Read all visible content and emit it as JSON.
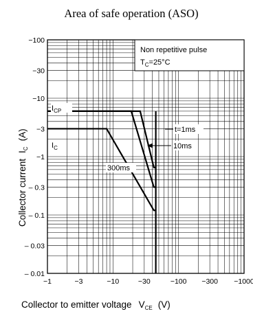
{
  "chart_data": {
    "type": "line",
    "title": "Area of safe operation (ASO)",
    "xlabel": {
      "main": "Collector to emitter voltage",
      "symbol": "V",
      "sub": "CE",
      "unit": "(V)"
    },
    "ylabel": {
      "main": "Collector current",
      "symbol": "I",
      "sub": "C",
      "unit": "(A)"
    },
    "x_scale": "log",
    "y_scale": "log",
    "xlim": [
      -1,
      -1000
    ],
    "ylim": [
      -0.01,
      -100
    ],
    "grid": true,
    "x_ticks": [
      {
        "value": -1,
        "label": "−1"
      },
      {
        "value": -3,
        "label": "−3"
      },
      {
        "value": -10,
        "label": "−10"
      },
      {
        "value": -30,
        "label": "−30"
      },
      {
        "value": -100,
        "label": "−100"
      },
      {
        "value": -300,
        "label": "−300"
      },
      {
        "value": -1000,
        "label": "−1000"
      }
    ],
    "y_ticks": [
      {
        "value": -0.01,
        "label": "– 0.01"
      },
      {
        "value": -0.03,
        "label": "– 0.03"
      },
      {
        "value": -0.1,
        "label": "– 0.1"
      },
      {
        "value": -0.3,
        "label": "– 0.3"
      },
      {
        "value": -1,
        "label": "−1"
      },
      {
        "value": -3,
        "label": "−3"
      },
      {
        "value": -10,
        "label": "−10"
      },
      {
        "value": -30,
        "label": "−30"
      },
      {
        "value": -100,
        "label": "−100"
      }
    ],
    "legend_box": {
      "line1": "Non repetitive pulse",
      "line2_symbol": "T",
      "line2_sub": "C",
      "line2_rest": "=25°C",
      "position": "top-right"
    },
    "series": [
      {
        "name": "t=1ms",
        "points": [
          [
            -1,
            -6
          ],
          [
            -26,
            -6
          ],
          [
            -42,
            -0.65
          ],
          [
            -46,
            -0.65
          ]
        ]
      },
      {
        "name": "10ms",
        "points": [
          [
            -1,
            -6
          ],
          [
            -19,
            -6
          ],
          [
            -42,
            -0.3
          ],
          [
            -46,
            -0.3
          ]
        ]
      },
      {
        "name": "300ms",
        "points": [
          [
            -1,
            -3
          ],
          [
            -8,
            -3
          ],
          [
            -42,
            -0.12
          ],
          [
            -46,
            -0.12
          ]
        ]
      }
    ],
    "vertical_limit": {
      "x": -45,
      "y_from": -0.01,
      "y_to": -6
    },
    "annotations": [
      {
        "id": "icp",
        "symbol": "I",
        "sub": "CP",
        "y": -6
      },
      {
        "id": "ic",
        "symbol": "I",
        "sub": "C",
        "y": -3
      },
      {
        "id": "t1ms",
        "text": "t=1ms",
        "x": -50,
        "y": -3.9
      },
      {
        "id": "t10ms",
        "text": "10ms",
        "x": -52,
        "y": -2.4
      },
      {
        "id": "t300ms",
        "text": "300ms",
        "x": -11,
        "y": -1
      }
    ]
  }
}
